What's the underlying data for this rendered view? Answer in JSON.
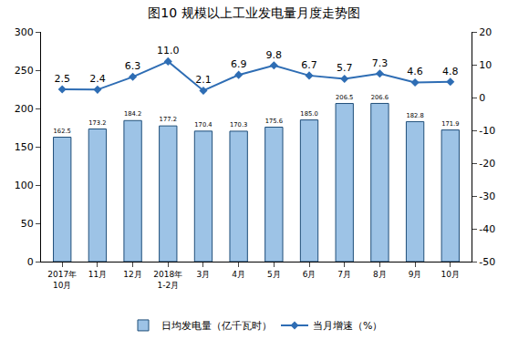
{
  "chart_data": {
    "type": "bar",
    "title": "图10 规模以上工业发电量月度走势图",
    "categories": [
      "2017年\n10月",
      "11月",
      "12月",
      "2018年\n1-2月",
      "3月",
      "4月",
      "5月",
      "6月",
      "7月",
      "8月",
      "9月",
      "10月"
    ],
    "series": [
      {
        "name": "日均发电量（亿千瓦时）",
        "type": "bar",
        "color": "#9dc3e6",
        "values": [
          162.5,
          173.2,
          184.2,
          177.2,
          170.4,
          170.3,
          175.6,
          185.0,
          206.5,
          206.6,
          182.8,
          171.9
        ],
        "value_labels": [
          "162.5",
          "173.2",
          "184.2",
          "177.2",
          "170.4",
          "170.3",
          "175.6",
          "185.0",
          "206.5",
          "206.6",
          "182.8",
          "171.9"
        ]
      },
      {
        "name": "当月增速（%）",
        "type": "line",
        "axis": "y2",
        "color": "#2e6db4",
        "marker": "diamond",
        "values": [
          2.5,
          2.4,
          6.3,
          11.0,
          2.1,
          6.9,
          9.8,
          6.7,
          5.7,
          7.3,
          4.6,
          4.8
        ],
        "value_labels": [
          "2.5",
          "2.4",
          "6.3",
          "11.0",
          "2.1",
          "6.9",
          "9.8",
          "6.7",
          "5.7",
          "7.3",
          "4.6",
          "4.8"
        ]
      }
    ],
    "ylim": [
      0,
      300
    ],
    "yticks": [
      0,
      50,
      100,
      150,
      200,
      250,
      300
    ],
    "y2lim": [
      -50,
      20
    ],
    "y2ticks": [
      -50,
      -40,
      -30,
      -20,
      -10,
      0,
      10,
      20
    ],
    "data_labels": true,
    "grid": false,
    "legend": "bottom"
  }
}
